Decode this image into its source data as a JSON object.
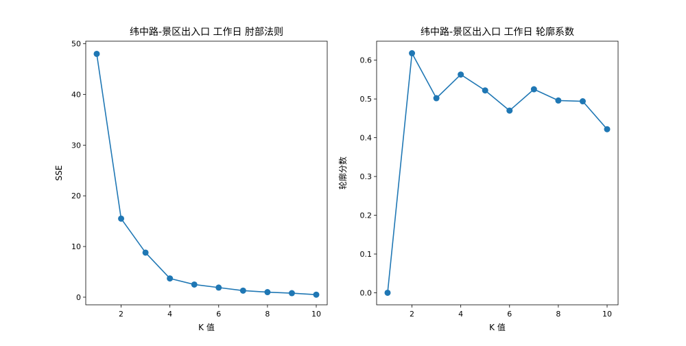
{
  "chart_data": [
    {
      "type": "line",
      "title": "纬中路-景区出入口 工作日 肘部法则",
      "xlabel": "K 值",
      "ylabel": "SSE",
      "x": [
        1,
        2,
        3,
        4,
        5,
        6,
        7,
        8,
        9,
        10
      ],
      "series": [
        {
          "values": [
            48.0,
            15.5,
            8.8,
            3.7,
            2.5,
            1.9,
            1.3,
            1.0,
            0.8,
            0.5
          ],
          "color": "#1f77b4",
          "marker": "circle"
        }
      ],
      "xlim": [
        0.55,
        10.45
      ],
      "ylim": [
        -1.5,
        50.5
      ],
      "xticks": [
        2,
        4,
        6,
        8,
        10
      ],
      "yticks": [
        0,
        10,
        20,
        30,
        40,
        50
      ],
      "grid": false
    },
    {
      "type": "line",
      "title": "纬中路-景区出入口 工作日 轮廓系数",
      "xlabel": "K 值",
      "ylabel": "轮廓分数",
      "x": [
        1,
        2,
        3,
        4,
        5,
        6,
        7,
        8,
        9,
        10
      ],
      "series": [
        {
          "values": [
            0.0,
            0.618,
            0.502,
            0.563,
            0.522,
            0.47,
            0.525,
            0.496,
            0.494,
            0.422
          ],
          "color": "#1f77b4",
          "marker": "circle"
        }
      ],
      "xlim": [
        0.55,
        10.45
      ],
      "ylim": [
        -0.031,
        0.649
      ],
      "xticks": [
        2,
        4,
        6,
        8,
        10
      ],
      "yticks": [
        0.0,
        0.1,
        0.2,
        0.3,
        0.4,
        0.5,
        0.6
      ],
      "grid": false
    }
  ]
}
